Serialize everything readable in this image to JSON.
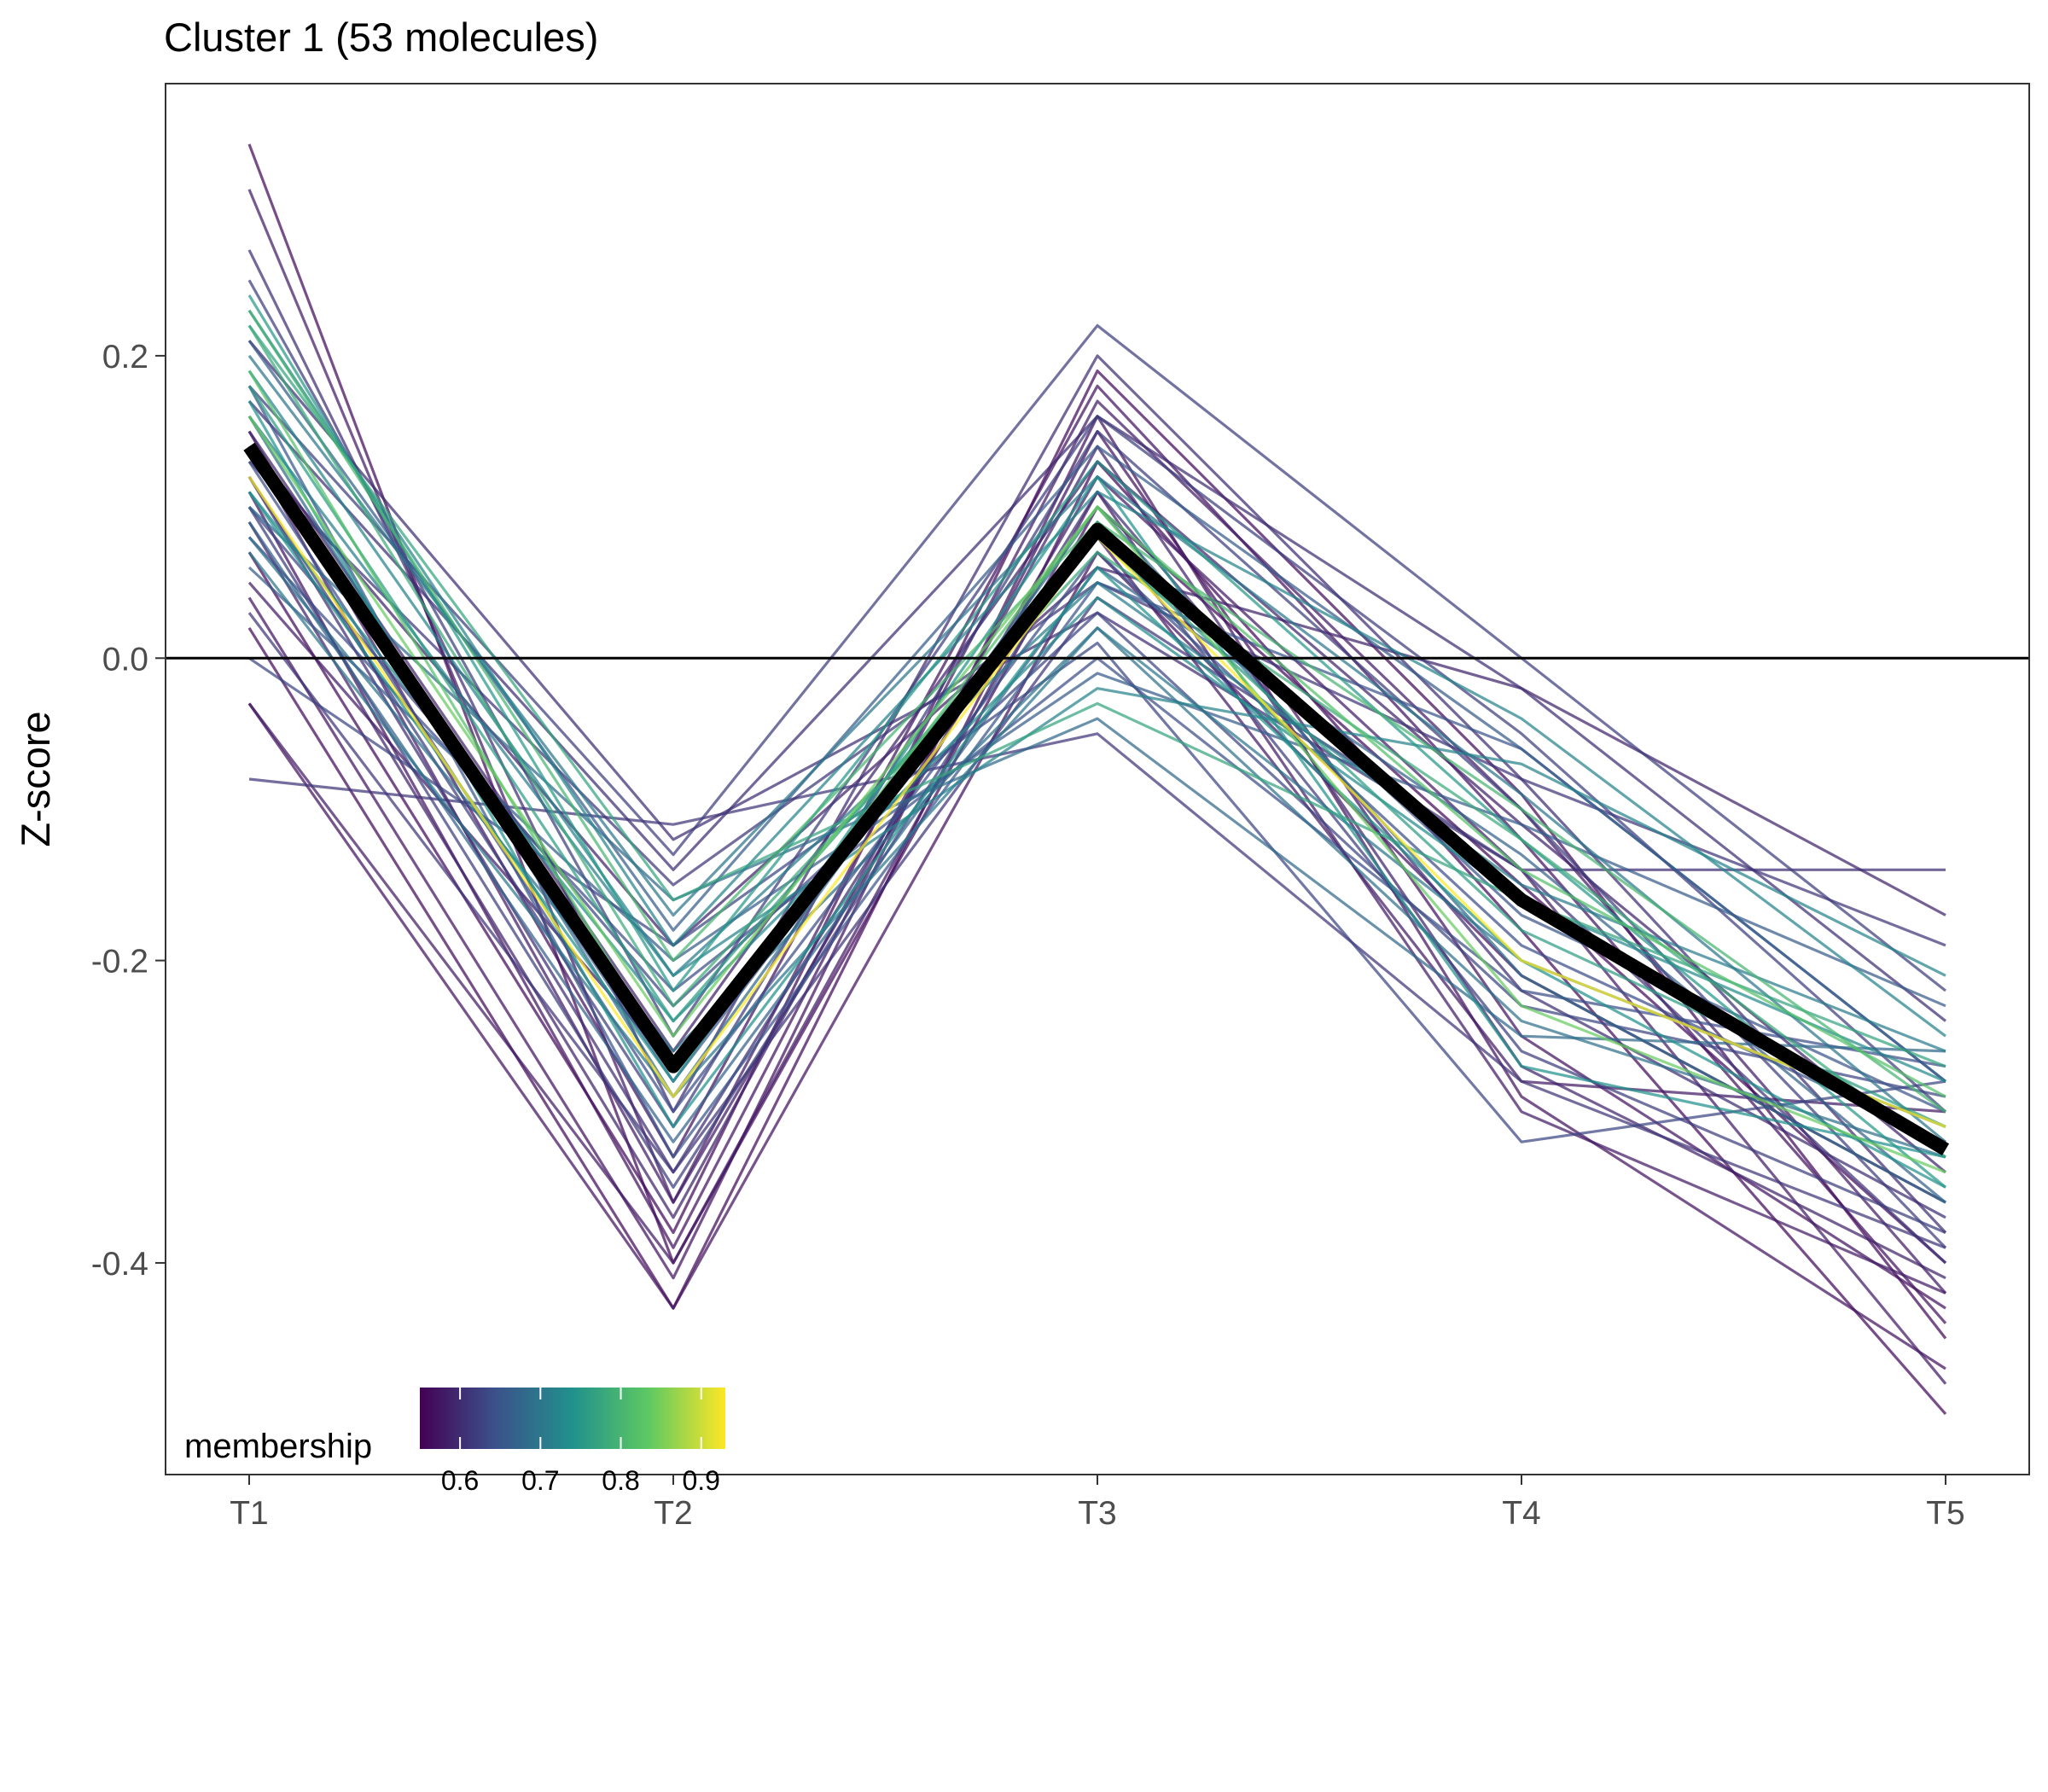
{
  "chart_data": {
    "type": "line",
    "title": "Cluster 1 (53 molecules)",
    "xlabel": "",
    "ylabel": "Z-score",
    "categories": [
      "T1",
      "T2",
      "T3",
      "T4",
      "T5"
    ],
    "ylim": [
      -0.54,
      0.38
    ],
    "yticks": [
      0.2,
      0.0,
      -0.2,
      -0.4
    ],
    "ytick_labels": [
      "0.2",
      "0.0",
      "-0.2",
      "-0.4"
    ],
    "reference_line": 0.0,
    "grid": false,
    "legend": {
      "title": "membership",
      "placement": "bottom-left",
      "type": "colorbar",
      "range": [
        0.55,
        0.93
      ],
      "ticks": [
        0.6,
        0.7,
        0.8,
        0.9
      ],
      "tick_labels": [
        "0.6",
        "0.7",
        "0.8",
        "0.9"
      ],
      "colors": [
        "#440154",
        "#3b528b",
        "#21918c",
        "#5ec962",
        "#fde725"
      ]
    },
    "centroid": {
      "values": [
        0.14,
        -0.27,
        0.085,
        -0.16,
        -0.325
      ],
      "color": "#000000"
    },
    "series": [
      {
        "values": [
          0.34,
          -0.4,
          0.1,
          -0.15,
          -0.4
        ],
        "membership": 0.56
      },
      {
        "values": [
          0.31,
          -0.36,
          0.17,
          -0.1,
          -0.42
        ],
        "membership": 0.58
      },
      {
        "values": [
          0.27,
          -0.3,
          0.2,
          -0.08,
          -0.38
        ],
        "membership": 0.6
      },
      {
        "values": [
          0.25,
          -0.25,
          0.16,
          -0.05,
          -0.3
        ],
        "membership": 0.62
      },
      {
        "values": [
          0.24,
          -0.22,
          0.13,
          -0.12,
          -0.35
        ],
        "membership": 0.75
      },
      {
        "values": [
          0.23,
          -0.19,
          0.11,
          -0.04,
          -0.25
        ],
        "membership": 0.72
      },
      {
        "values": [
          0.23,
          -0.2,
          0.09,
          -0.1,
          -0.3
        ],
        "membership": 0.8
      },
      {
        "values": [
          0.22,
          -0.23,
          0.07,
          -0.12,
          -0.33
        ],
        "membership": 0.78
      },
      {
        "values": [
          0.21,
          -0.18,
          0.14,
          -0.06,
          -0.28
        ],
        "membership": 0.66
      },
      {
        "values": [
          0.2,
          -0.17,
          0.12,
          -0.09,
          -0.32
        ],
        "membership": 0.7
      },
      {
        "values": [
          0.19,
          -0.27,
          0.1,
          -0.14,
          -0.29
        ],
        "membership": 0.82
      },
      {
        "values": [
          0.18,
          -0.24,
          0.08,
          -0.18,
          -0.31
        ],
        "membership": 0.76
      },
      {
        "values": [
          0.18,
          -0.13,
          0.22,
          0.0,
          -0.22
        ],
        "membership": 0.62
      },
      {
        "values": [
          0.17,
          -0.14,
          0.16,
          -0.02,
          -0.24
        ],
        "membership": 0.6
      },
      {
        "values": [
          0.17,
          -0.31,
          0.06,
          -0.2,
          -0.35
        ],
        "membership": 0.74
      },
      {
        "values": [
          0.16,
          -0.29,
          0.1,
          -0.21,
          -0.36
        ],
        "membership": 0.68
      },
      {
        "values": [
          0.16,
          -0.21,
          0.05,
          -0.15,
          -0.26
        ],
        "membership": 0.71
      },
      {
        "values": [
          0.15,
          -0.26,
          0.13,
          -0.11,
          -0.34
        ],
        "membership": 0.59
      },
      {
        "values": [
          0.15,
          -0.33,
          0.18,
          -0.12,
          -0.44
        ],
        "membership": 0.57
      },
      {
        "values": [
          0.14,
          -0.36,
          0.12,
          -0.14,
          -0.48
        ],
        "membership": 0.58
      },
      {
        "values": [
          0.14,
          -0.28,
          0.09,
          -0.17,
          -0.3
        ],
        "membership": 0.65
      },
      {
        "values": [
          0.13,
          -0.3,
          0.07,
          -0.19,
          -0.32
        ],
        "membership": 0.64
      },
      {
        "values": [
          0.13,
          -0.15,
          0.05,
          -0.08,
          -0.19
        ],
        "membership": 0.61
      },
      {
        "values": [
          0.12,
          -0.29,
          0.08,
          -0.2,
          -0.31
        ],
        "membership": 0.93
      },
      {
        "values": [
          0.12,
          -0.34,
          0.11,
          -0.22,
          -0.37
        ],
        "membership": 0.6
      },
      {
        "values": [
          0.11,
          -0.39,
          0.15,
          -0.25,
          -0.43
        ],
        "membership": 0.57
      },
      {
        "values": [
          0.11,
          -0.24,
          0.04,
          -0.16,
          -0.28
        ],
        "membership": 0.73
      },
      {
        "values": [
          0.1,
          -0.23,
          0.03,
          -0.23,
          -0.29
        ],
        "membership": 0.63
      },
      {
        "values": [
          0.1,
          -0.35,
          0.09,
          -0.26,
          -0.38
        ],
        "membership": 0.62
      },
      {
        "values": [
          0.09,
          -0.37,
          0.14,
          -0.27,
          -0.41
        ],
        "membership": 0.59
      },
      {
        "values": [
          0.09,
          -0.32,
          0.06,
          -0.13,
          -0.36
        ],
        "membership": 0.67
      },
      {
        "values": [
          0.08,
          -0.26,
          0.02,
          -0.24,
          -0.33
        ],
        "membership": 0.69
      },
      {
        "values": [
          0.08,
          -0.22,
          0.0,
          -0.22,
          -0.27
        ],
        "membership": 0.64
      },
      {
        "values": [
          0.07,
          -0.38,
          0.19,
          -0.09,
          -0.45
        ],
        "membership": 0.56
      },
      {
        "values": [
          0.06,
          -0.2,
          -0.01,
          -0.11,
          -0.23
        ],
        "membership": 0.66
      },
      {
        "values": [
          0.05,
          -0.27,
          0.08,
          -0.28,
          -0.3
        ],
        "membership": 0.58
      },
      {
        "values": [
          0.04,
          -0.41,
          0.16,
          -0.29,
          -0.47
        ],
        "membership": 0.57
      },
      {
        "values": [
          0.03,
          -0.34,
          0.04,
          -0.14,
          -0.4
        ],
        "membership": 0.61
      },
      {
        "values": [
          0.02,
          -0.43,
          0.13,
          -0.18,
          -0.5
        ],
        "membership": 0.56
      },
      {
        "values": [
          0.0,
          -0.19,
          0.01,
          -0.32,
          -0.28
        ],
        "membership": 0.63
      },
      {
        "values": [
          -0.03,
          -0.4,
          0.11,
          -0.3,
          -0.42
        ],
        "membership": 0.58
      },
      {
        "values": [
          -0.03,
          -0.43,
          0.07,
          -0.21,
          -0.36
        ],
        "membership": 0.57
      },
      {
        "values": [
          -0.08,
          -0.11,
          -0.05,
          -0.28,
          -0.39
        ],
        "membership": 0.61
      },
      {
        "values": [
          0.21,
          -0.12,
          0.03,
          -0.14,
          -0.14
        ],
        "membership": 0.6
      },
      {
        "values": [
          0.19,
          -0.21,
          -0.02,
          -0.07,
          -0.21
        ],
        "membership": 0.72
      },
      {
        "values": [
          0.22,
          -0.16,
          -0.03,
          -0.16,
          -0.27
        ],
        "membership": 0.77
      },
      {
        "values": [
          0.14,
          -0.19,
          0.06,
          -0.02,
          -0.17
        ],
        "membership": 0.59
      },
      {
        "values": [
          0.1,
          -0.16,
          -0.04,
          -0.25,
          -0.26
        ],
        "membership": 0.68
      },
      {
        "values": [
          0.16,
          -0.25,
          0.1,
          -0.23,
          -0.34
        ],
        "membership": 0.84
      },
      {
        "values": [
          0.12,
          -0.31,
          0.15,
          -0.1,
          -0.39
        ],
        "membership": 0.62
      },
      {
        "values": [
          0.07,
          -0.29,
          0.02,
          -0.2,
          -0.31
        ],
        "membership": 0.7
      },
      {
        "values": [
          0.18,
          -0.33,
          0.05,
          -0.06,
          -0.28
        ],
        "membership": 0.65
      },
      {
        "values": [
          0.11,
          -0.28,
          0.12,
          -0.27,
          -0.33
        ],
        "membership": 0.74
      }
    ]
  }
}
